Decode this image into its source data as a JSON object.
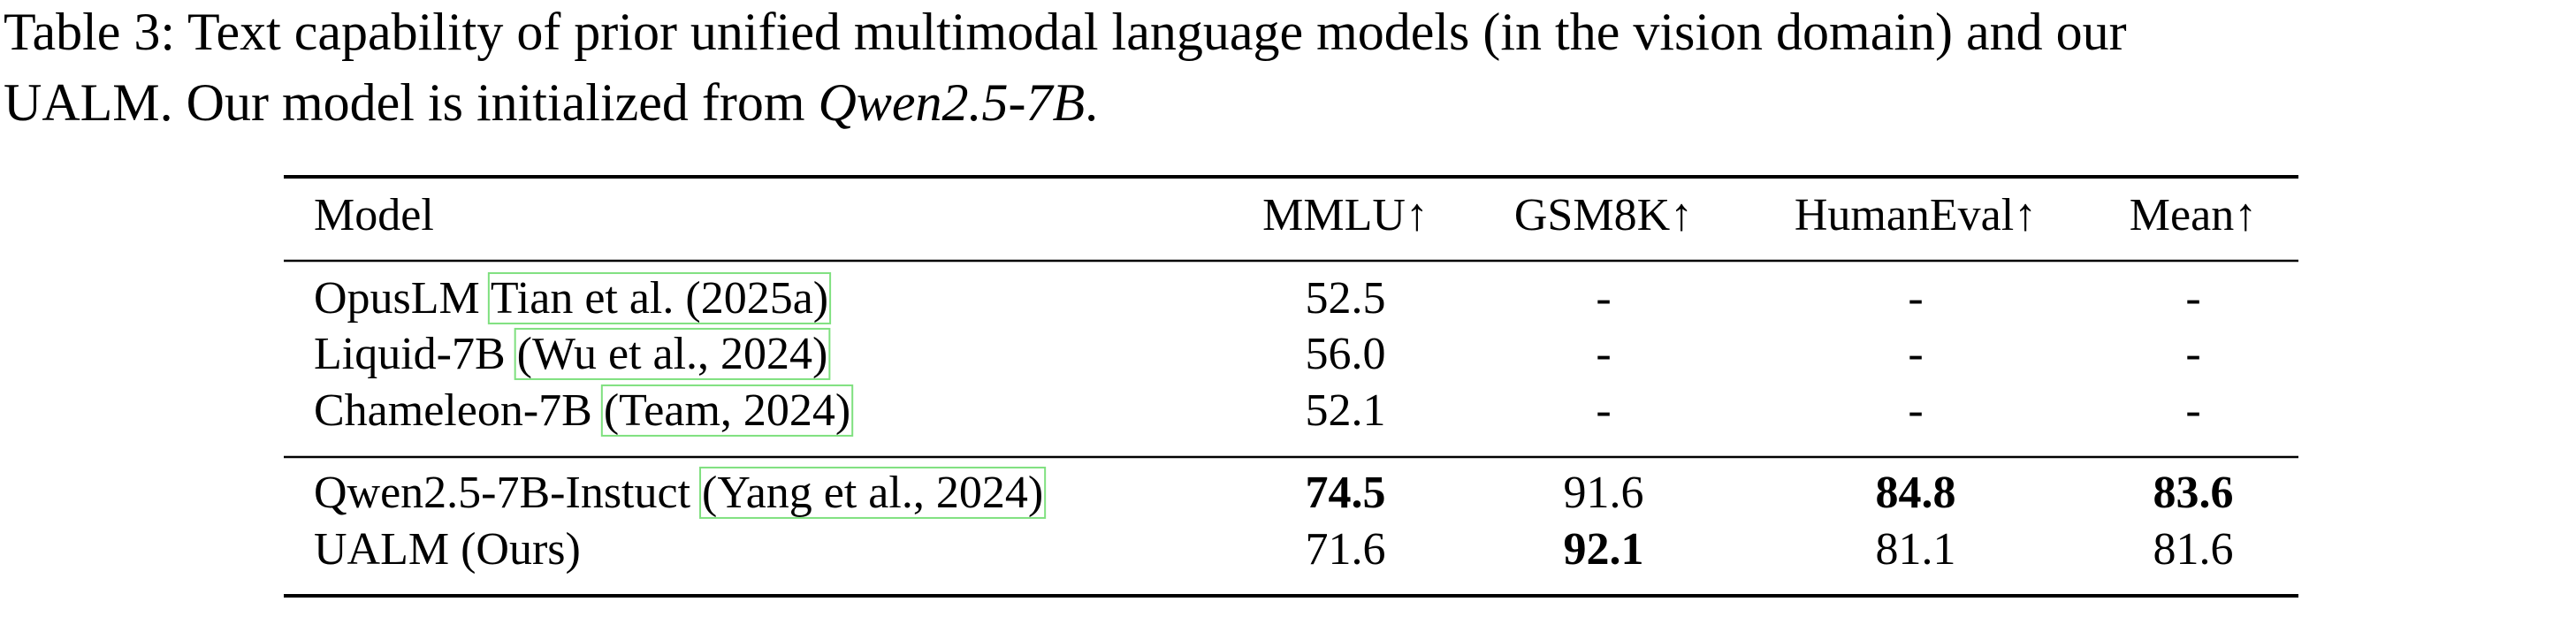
{
  "caption": {
    "line1": "Table 3: Text capability of prior unified multimodal language models (in the vision domain) and our",
    "line2_pre": "UALM. Our model is initialized from ",
    "line2_em": "Qwen2.5-7B",
    "line2_post": "."
  },
  "table": {
    "header": [
      "Model",
      "MMLU↑",
      "GSM8K↑",
      "HumanEval↑",
      "Mean↑"
    ],
    "groups": [
      [
        {
          "model": "OpusLM",
          "citation": "Tian et al. (2025a)",
          "values": [
            "52.5",
            "-",
            "-",
            "-"
          ],
          "bold": [
            false,
            false,
            false,
            false
          ]
        },
        {
          "model": "Liquid-7B",
          "citation": "(Wu et al., 2024)",
          "values": [
            "56.0",
            "-",
            "-",
            "-"
          ],
          "bold": [
            false,
            false,
            false,
            false
          ]
        },
        {
          "model": "Chameleon-7B",
          "citation": "(Team, 2024)",
          "values": [
            "52.1",
            "-",
            "-",
            "-"
          ],
          "bold": [
            false,
            false,
            false,
            false
          ]
        }
      ],
      [
        {
          "model": "Qwen2.5-7B-Instuct",
          "citation": "(Yang et al., 2024)",
          "values": [
            "74.5",
            "91.6",
            "84.8",
            "83.6"
          ],
          "bold": [
            true,
            false,
            true,
            true
          ]
        },
        {
          "model": "UALM (Ours)",
          "citation": null,
          "values": [
            "71.6",
            "92.1",
            "81.1",
            "81.6"
          ],
          "bold": [
            false,
            true,
            false,
            false
          ]
        }
      ]
    ]
  }
}
